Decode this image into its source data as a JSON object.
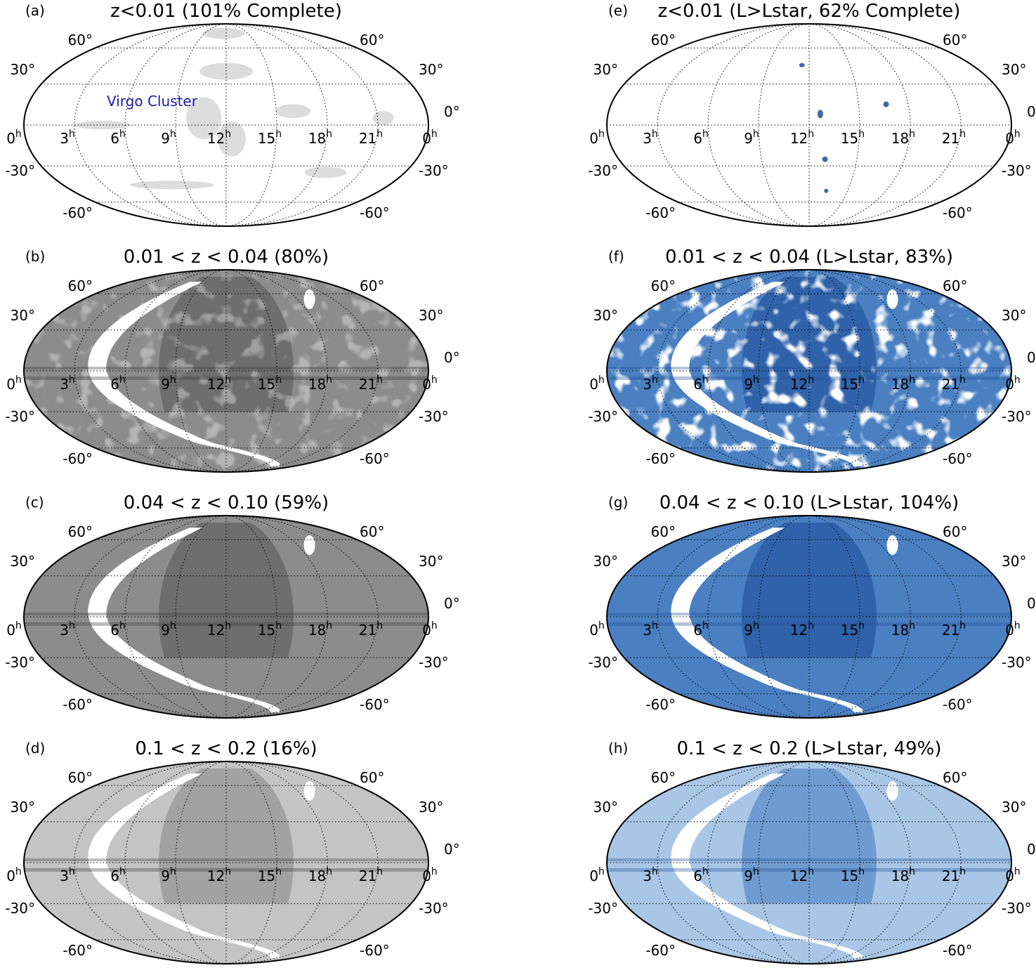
{
  "figure": {
    "lat_labels": {
      "north60": "60°",
      "north30": "30°",
      "equator": "0°",
      "south30": "-30°",
      "south60": "-60°"
    },
    "ra_labels": [
      {
        "hour": "0",
        "unit": "h"
      },
      {
        "hour": "21",
        "unit": "h"
      },
      {
        "hour": "18",
        "unit": "h"
      },
      {
        "hour": "15",
        "unit": "h"
      },
      {
        "hour": "12",
        "unit": "h"
      },
      {
        "hour": "9",
        "unit": "h"
      },
      {
        "hour": "6",
        "unit": "h"
      },
      {
        "hour": "3",
        "unit": "h"
      },
      {
        "hour": "0",
        "unit": "h"
      }
    ]
  },
  "panels": [
    {
      "id": "a",
      "letter": "(a)",
      "title": "z<0.01 (101% Complete)",
      "colormap": "gray",
      "density": "sparse",
      "annotation": "Virgo Cluster"
    },
    {
      "id": "b",
      "letter": "(b)",
      "title": "0.01 < z < 0.04 (80%)",
      "colormap": "gray",
      "density": "dense"
    },
    {
      "id": "c",
      "letter": "(c)",
      "title": "0.04 < z < 0.10 (59%)",
      "colormap": "gray",
      "density": "full"
    },
    {
      "id": "d",
      "letter": "(d)",
      "title": "0.1 < z < 0.2 (16%)",
      "colormap": "gray",
      "density": "full-light"
    },
    {
      "id": "e",
      "letter": "(e)",
      "title": "z<0.01 (L>Lstar, 62% Complete)",
      "colormap": "blue",
      "density": "very-sparse"
    },
    {
      "id": "f",
      "letter": "(f)",
      "title": "0.01 < z < 0.04 (L>Lstar, 83%)",
      "colormap": "blue",
      "density": "patchy"
    },
    {
      "id": "g",
      "letter": "(g)",
      "title": "0.04 < z < 0.10 (L>Lstar, 104%)",
      "colormap": "blue",
      "density": "full"
    },
    {
      "id": "h",
      "letter": "(h)",
      "title": "0.1 < z < 0.2 (L>Lstar, 49%)",
      "colormap": "blue",
      "density": "full-light"
    }
  ],
  "colors": {
    "gray_dark": "#5a5a5a",
    "gray_mid": "#8c8c8c",
    "gray_light": "#c4c4c4",
    "blue_dark": "#1f4f97",
    "blue_mid": "#4a80c2",
    "blue_light": "#a9c6e6",
    "annotation": "#1a1aa6"
  }
}
